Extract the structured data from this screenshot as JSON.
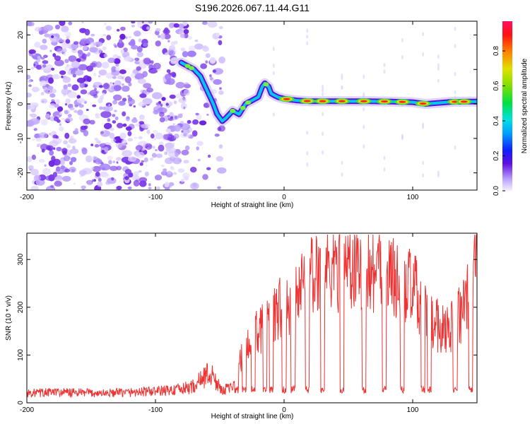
{
  "title": "S196.2026.067.11.44.G11",
  "colorbar_label": "Normalized spectral amplitude",
  "chart_data": [
    {
      "type": "heatmap",
      "title": "S196.2026.067.11.44.G11",
      "xlabel": "Height of straight line (km)",
      "ylabel": "Frequency (Hz)",
      "xlim": [
        -200,
        150
      ],
      "ylim": [
        -25,
        24
      ],
      "xticks": [
        -200,
        -100,
        0,
        100
      ],
      "yticks": [
        -20,
        -10,
        0,
        10,
        20
      ],
      "colorbar": {
        "label": "Normalized spectral amplitude",
        "range": [
          0,
          0.97
        ],
        "ticks": [
          0.0,
          0.2,
          0.4,
          0.6,
          0.8
        ]
      },
      "noise_region_x": [
        -200,
        -48
      ],
      "ridge": {
        "x": [
          -80,
          -75,
          -70,
          -65,
          -60,
          -55,
          -52,
          -48,
          -45,
          -40,
          -35,
          -30,
          -25,
          -20,
          -17,
          -15,
          -12,
          -10,
          -5,
          0,
          10,
          20,
          40,
          60,
          80,
          100,
          110,
          120,
          130,
          150
        ],
        "freq": [
          12,
          11,
          10,
          8,
          4,
          0,
          -3,
          -5,
          -4,
          -2,
          -3,
          0,
          1,
          2,
          5,
          6,
          5,
          3,
          2,
          1.5,
          1,
          0.8,
          0.8,
          0.8,
          0.7,
          0.5,
          0,
          0.3,
          0.6,
          0.7
        ]
      },
      "peak_x": [
        2,
        18,
        30,
        45,
        62,
        78,
        92,
        108,
        133,
        140
      ]
    },
    {
      "type": "line",
      "xlabel": "Height of straight line (km)",
      "ylabel": "SNR (10 * v/v)",
      "xlim": [
        -200,
        150
      ],
      "ylim": [
        0,
        355
      ],
      "xticks": [
        -200,
        -100,
        0,
        100
      ],
      "yticks": [
        0,
        100,
        200,
        300
      ],
      "color": "#ee3333",
      "series": [
        {
          "name": "SNR",
          "x": [
            -200,
            -180,
            -160,
            -140,
            -120,
            -100,
            -80,
            -70,
            -60,
            -55,
            -50,
            -40,
            -35,
            -30,
            -25,
            -20,
            -15,
            -10,
            -5,
            0,
            10,
            20,
            30,
            40,
            50,
            60,
            70,
            80,
            90,
            100,
            105,
            110,
            115,
            120,
            130,
            140,
            145,
            150
          ],
          "values": [
            20,
            22,
            21,
            20,
            22,
            24,
            28,
            35,
            60,
            55,
            30,
            30,
            80,
            110,
            130,
            160,
            150,
            175,
            190,
            210,
            220,
            260,
            275,
            285,
            290,
            280,
            285,
            270,
            250,
            240,
            215,
            195,
            170,
            160,
            160,
            200,
            230,
            300
          ]
        }
      ],
      "dips_x": [
        -37,
        -31,
        -24,
        -15,
        -10,
        0,
        7,
        18,
        30,
        45,
        62,
        78,
        92,
        108,
        113,
        133,
        145
      ],
      "dip_depth": 20
    }
  ]
}
